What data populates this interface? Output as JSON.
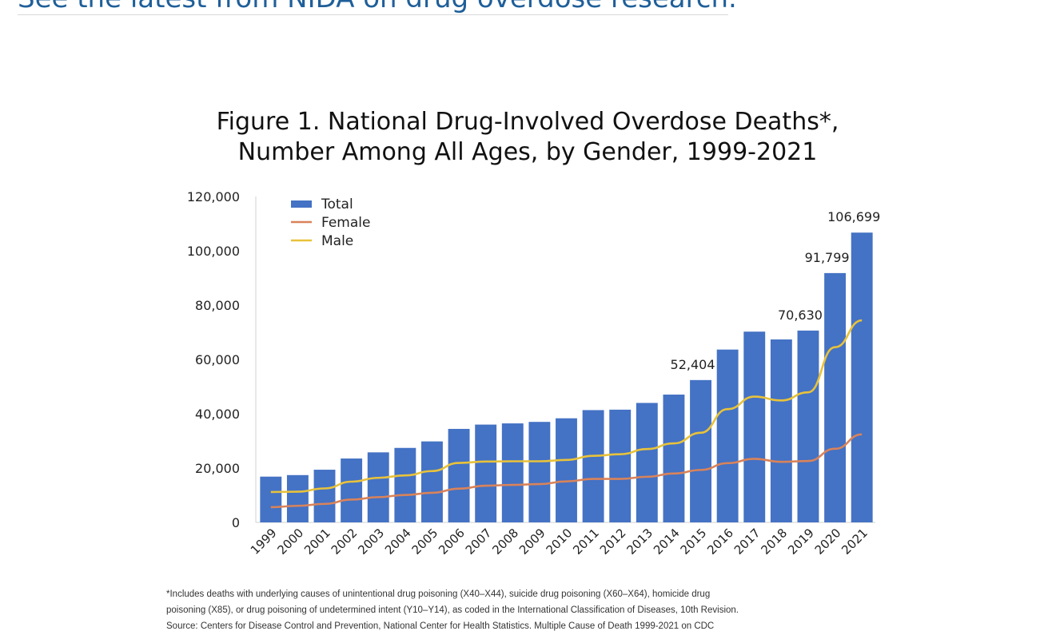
{
  "page": {
    "link_text": "See the latest from NIDA on drug overdose research",
    "link_suffix": "."
  },
  "colors": {
    "total": "#4472c4",
    "female": "#d9835a",
    "male": "#e8c23a",
    "link": "#1f5f99"
  },
  "chart_data": {
    "type": "bar",
    "title": "Figure 1. National Drug-Involved Overdose Deaths*,",
    "subtitle": "Number Among All Ages, by Gender, 1999-2021",
    "categories": [
      "1999",
      "2000",
      "2001",
      "2002",
      "2003",
      "2004",
      "2005",
      "2006",
      "2007",
      "2008",
      "2009",
      "2010",
      "2011",
      "2012",
      "2013",
      "2014",
      "2015",
      "2016",
      "2017",
      "2018",
      "2019",
      "2020",
      "2021"
    ],
    "series": [
      {
        "name": "Total",
        "kind": "bar",
        "values": [
          16849,
          17415,
          19394,
          23518,
          25785,
          27424,
          29813,
          34425,
          36010,
          36450,
          37004,
          38329,
          41340,
          41502,
          43982,
          47055,
          52404,
          63632,
          70237,
          67367,
          70630,
          91799,
          106699
        ]
      },
      {
        "name": "Female",
        "kind": "line",
        "values": [
          5600,
          6100,
          6800,
          8400,
          9300,
          10100,
          10900,
          12400,
          13500,
          13800,
          14100,
          15100,
          16000,
          16000,
          16800,
          18000,
          19300,
          21800,
          23400,
          22300,
          22600,
          27100,
          32400
        ]
      },
      {
        "name": "Male",
        "kind": "line",
        "values": [
          11200,
          11300,
          12500,
          15000,
          16400,
          17300,
          18900,
          21900,
          22400,
          22500,
          22500,
          23000,
          24500,
          25100,
          27000,
          29100,
          33000,
          41700,
          46300,
          44900,
          47900,
          64500,
          74400
        ]
      }
    ],
    "data_labels": [
      {
        "category": "2015",
        "text": "52,404"
      },
      {
        "category": "2019",
        "text": "70,630"
      },
      {
        "category": "2020",
        "text": "91,799"
      },
      {
        "category": "2021",
        "text": "106,699"
      }
    ],
    "yticks": [
      "0",
      "20,000",
      "40,000",
      "60,000",
      "80,000",
      "100,000",
      "120,000"
    ],
    "ylim": [
      0,
      120000
    ],
    "grid": false,
    "legend_position": "top-left",
    "xlabel": "",
    "ylabel": ""
  },
  "footnote": {
    "line1": "*Includes deaths with underlying causes of unintentional drug poisoning (X40–X44), suicide drug poisoning (X60–X64), homicide drug",
    "line2": "poisoning (X85), or drug poisoning of undetermined intent (Y10–Y14), as coded in the International Classification of Diseases, 10th Revision.",
    "line3": "Source: Centers for Disease Control and Prevention, National Center for Health Statistics. Multiple Cause of Death 1999-2021 on CDC"
  }
}
